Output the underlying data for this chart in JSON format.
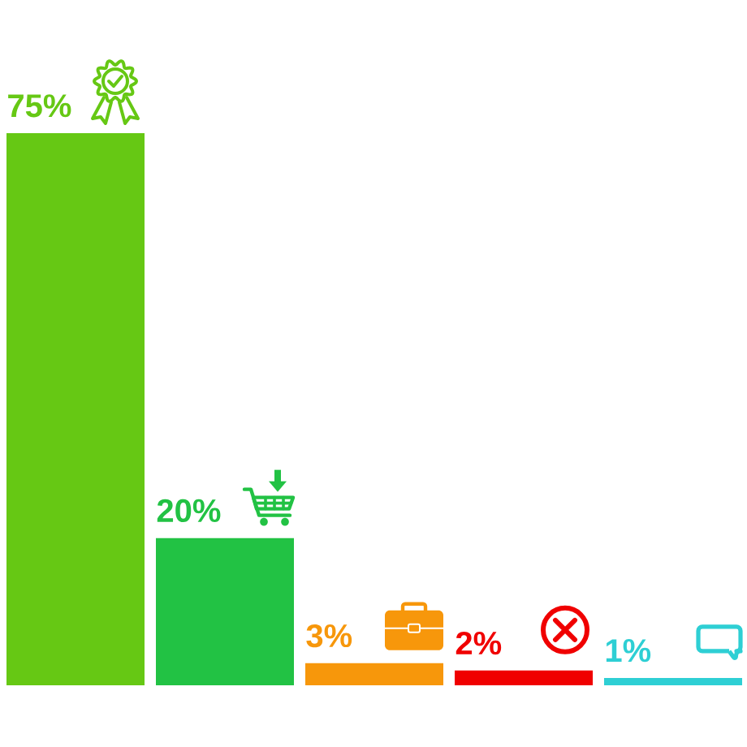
{
  "chart_data": {
    "type": "bar",
    "categories": [
      null,
      null,
      null,
      null,
      null
    ],
    "values": [
      75,
      20,
      3,
      2,
      1
    ],
    "value_labels": [
      "75%",
      "20%",
      "3%",
      "2%",
      "1%"
    ],
    "colors": [
      "#66c814",
      "#22c244",
      "#f7970b",
      "#f00000",
      "#2ecfd4"
    ]
  }
}
